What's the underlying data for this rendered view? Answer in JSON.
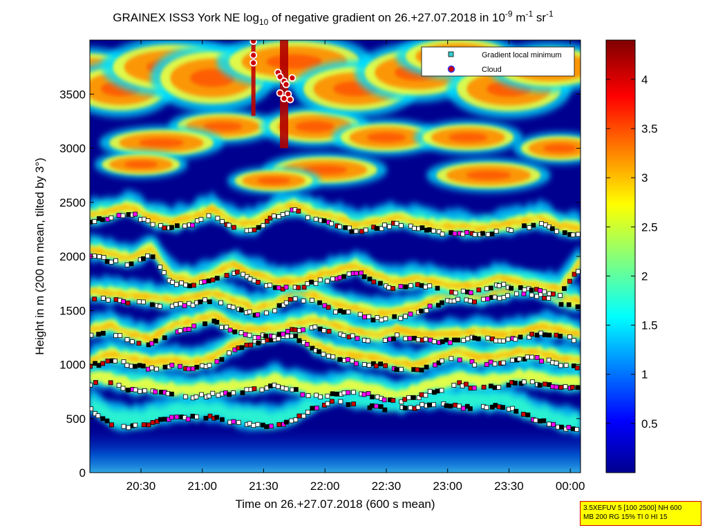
{
  "chart_data": {
    "type": "heatmap",
    "title": "GRAINEX ISS3 York NE log",
    "title_sub": "10",
    "title_mid": " of negative gradient on 26.+27.07.2018 in 10",
    "title_sup1": "-9",
    "title_mid2": " m",
    "title_sup2": "-1",
    "title_end": " sr",
    "title_sup3": "-1",
    "xlabel": "Time on 26.+27.07.2018 (600 s mean)",
    "ylabel": "Height in m (200 m mean, tilted by 3°)",
    "x_range": [
      "20:05",
      "00:05"
    ],
    "x_ticks": [
      "20:30",
      "21:00",
      "21:30",
      "22:00",
      "22:30",
      "23:00",
      "23:30",
      "00:00"
    ],
    "ylim": [
      0,
      4000
    ],
    "y_ticks": [
      0,
      500,
      1000,
      1500,
      2000,
      2500,
      3000,
      3500
    ],
    "colorbar": {
      "range": [
        0,
        4.4
      ],
      "ticks": [
        "0.5",
        "1",
        "1.5",
        "2",
        "2.5",
        "3",
        "3.5",
        "4"
      ],
      "colormap": "jet"
    },
    "legend": {
      "position": "top-right",
      "entries": [
        {
          "label": "Gradient local minimum",
          "marker": "square",
          "color": "#33cccc"
        },
        {
          "label": "Cloud",
          "marker": "circle",
          "color": "#cc0000"
        }
      ]
    },
    "layers": [
      {
        "name": "layer-1",
        "points": [
          [
            "20:05",
            590
          ],
          [
            "20:15",
            450
          ],
          [
            "20:25",
            420
          ],
          [
            "20:35",
            460
          ],
          [
            "20:45",
            500
          ],
          [
            "20:55",
            510
          ],
          [
            "21:05",
            520
          ],
          [
            "21:15",
            470
          ],
          [
            "21:25",
            440
          ],
          [
            "21:35",
            430
          ],
          [
            "21:45",
            480
          ],
          [
            "21:55",
            600
          ],
          [
            "22:05",
            660
          ],
          [
            "22:15",
            620
          ],
          [
            "22:25",
            600
          ],
          [
            "22:35",
            590
          ],
          [
            "22:45",
            610
          ],
          [
            "22:55",
            640
          ],
          [
            "23:05",
            610
          ],
          [
            "23:15",
            590
          ],
          [
            "23:25",
            620
          ],
          [
            "23:35",
            560
          ],
          [
            "23:45",
            480
          ],
          [
            "23:55",
            420
          ],
          [
            "00:05",
            390
          ]
        ]
      },
      {
        "name": "layer-2",
        "points": [
          [
            "20:05",
            820
          ],
          [
            "20:15",
            820
          ],
          [
            "20:25",
            760
          ],
          [
            "20:35",
            750
          ],
          [
            "20:45",
            720
          ],
          [
            "20:55",
            700
          ],
          [
            "21:05",
            720
          ],
          [
            "21:15",
            740
          ],
          [
            "21:25",
            760
          ],
          [
            "21:35",
            800
          ],
          [
            "21:45",
            760
          ],
          [
            "21:55",
            700
          ],
          [
            "22:05",
            720
          ],
          [
            "22:15",
            760
          ],
          [
            "22:25",
            700
          ],
          [
            "22:35",
            660
          ],
          [
            "22:45",
            700
          ],
          [
            "22:55",
            760
          ],
          [
            "23:05",
            820
          ],
          [
            "23:15",
            780
          ],
          [
            "23:25",
            800
          ],
          [
            "23:35",
            840
          ],
          [
            "23:45",
            820
          ],
          [
            "23:55",
            790
          ],
          [
            "00:05",
            780
          ]
        ]
      },
      {
        "name": "layer-3",
        "points": [
          [
            "20:05",
            980
          ],
          [
            "20:15",
            1040
          ],
          [
            "20:25",
            1000
          ],
          [
            "20:35",
            960
          ],
          [
            "20:45",
            980
          ],
          [
            "20:55",
            960
          ],
          [
            "21:05",
            1000
          ],
          [
            "21:15",
            1120
          ],
          [
            "21:25",
            1200
          ],
          [
            "21:35",
            1240
          ],
          [
            "21:45",
            1260
          ],
          [
            "21:55",
            1120
          ],
          [
            "22:05",
            1060
          ],
          [
            "22:15",
            1020
          ],
          [
            "22:25",
            1000
          ],
          [
            "22:35",
            960
          ],
          [
            "22:45",
            940
          ],
          [
            "22:55",
            1010
          ],
          [
            "23:05",
            1060
          ],
          [
            "23:15",
            1000
          ],
          [
            "23:25",
            1020
          ],
          [
            "23:35",
            1060
          ],
          [
            "23:45",
            1050
          ],
          [
            "23:55",
            1000
          ],
          [
            "00:05",
            980
          ]
        ]
      },
      {
        "name": "layer-4",
        "points": [
          [
            "20:05",
            1260
          ],
          [
            "20:15",
            1300
          ],
          [
            "20:25",
            1220
          ],
          [
            "20:35",
            1180
          ],
          [
            "20:45",
            1300
          ],
          [
            "20:55",
            1340
          ],
          [
            "21:05",
            1400
          ],
          [
            "21:15",
            1300
          ],
          [
            "21:25",
            1260
          ],
          [
            "21:35",
            1270
          ],
          [
            "21:45",
            1320
          ],
          [
            "21:55",
            1350
          ],
          [
            "22:05",
            1300
          ],
          [
            "22:15",
            1250
          ],
          [
            "22:25",
            1210
          ],
          [
            "22:35",
            1260
          ],
          [
            "22:45",
            1230
          ],
          [
            "22:55",
            1210
          ],
          [
            "23:05",
            1220
          ],
          [
            "23:15",
            1250
          ],
          [
            "23:25",
            1210
          ],
          [
            "23:35",
            1240
          ],
          [
            "23:45",
            1290
          ],
          [
            "23:55",
            1260
          ],
          [
            "00:05",
            1220
          ]
        ]
      },
      {
        "name": "layer-5",
        "points": [
          [
            "20:05",
            1620
          ],
          [
            "20:15",
            1600
          ],
          [
            "20:25",
            1580
          ],
          [
            "20:35",
            1560
          ],
          [
            "20:45",
            1540
          ],
          [
            "20:55",
            1560
          ],
          [
            "21:05",
            1600
          ],
          [
            "21:15",
            1540
          ],
          [
            "21:25",
            1460
          ],
          [
            "21:35",
            1500
          ],
          [
            "21:45",
            1620
          ],
          [
            "21:55",
            1580
          ],
          [
            "22:05",
            1500
          ],
          [
            "22:15",
            1460
          ],
          [
            "22:25",
            1420
          ],
          [
            "22:35",
            1430
          ],
          [
            "22:45",
            1470
          ],
          [
            "22:55",
            1560
          ],
          [
            "23:05",
            1610
          ],
          [
            "23:15",
            1580
          ],
          [
            "23:25",
            1620
          ],
          [
            "23:35",
            1660
          ],
          [
            "23:45",
            1640
          ],
          [
            "23:55",
            1560
          ],
          [
            "00:05",
            1520
          ]
        ]
      },
      {
        "name": "layer-6",
        "points": [
          [
            "20:05",
            2010
          ],
          [
            "20:15",
            1960
          ],
          [
            "20:25",
            1920
          ],
          [
            "20:35",
            2020
          ],
          [
            "20:45",
            1760
          ],
          [
            "20:55",
            1720
          ],
          [
            "21:05",
            1780
          ],
          [
            "21:15",
            1860
          ],
          [
            "21:25",
            1780
          ],
          [
            "21:35",
            1720
          ],
          [
            "21:45",
            1700
          ],
          [
            "21:55",
            1760
          ],
          [
            "22:05",
            1800
          ],
          [
            "22:15",
            1860
          ],
          [
            "22:25",
            1760
          ],
          [
            "22:35",
            1700
          ],
          [
            "22:45",
            1740
          ],
          [
            "22:55",
            1700
          ],
          [
            "23:05",
            1660
          ],
          [
            "23:15",
            1680
          ],
          [
            "23:25",
            1740
          ],
          [
            "23:35",
            1700
          ],
          [
            "23:45",
            1680
          ],
          [
            "23:55",
            1640
          ],
          [
            "00:05",
            1900
          ]
        ]
      },
      {
        "name": "layer-7",
        "points": [
          [
            "20:05",
            2320
          ],
          [
            "20:15",
            2360
          ],
          [
            "20:25",
            2400
          ],
          [
            "20:35",
            2300
          ],
          [
            "20:45",
            2260
          ],
          [
            "20:55",
            2300
          ],
          [
            "21:05",
            2380
          ],
          [
            "21:15",
            2260
          ],
          [
            "21:25",
            2240
          ],
          [
            "21:35",
            2360
          ],
          [
            "21:45",
            2420
          ],
          [
            "21:55",
            2340
          ],
          [
            "22:05",
            2300
          ],
          [
            "22:15",
            2230
          ],
          [
            "22:25",
            2260
          ],
          [
            "22:35",
            2300
          ],
          [
            "22:45",
            2260
          ],
          [
            "22:55",
            2220
          ],
          [
            "23:05",
            2220
          ],
          [
            "23:15",
            2200
          ],
          [
            "23:25",
            2220
          ],
          [
            "23:35",
            2260
          ],
          [
            "23:45",
            2300
          ],
          [
            "23:55",
            2220
          ],
          [
            "00:05",
            2200
          ]
        ]
      }
    ],
    "clouds": [
      [
        "21:25",
        3990
      ],
      [
        "21:25",
        3860
      ],
      [
        "21:25",
        3790
      ],
      [
        "21:37",
        3700
      ],
      [
        "21:38",
        3660
      ],
      [
        "21:40",
        3620
      ],
      [
        "21:41",
        3590
      ],
      [
        "21:42",
        3500
      ],
      [
        "21:38",
        3510
      ],
      [
        "21:40",
        3460
      ],
      [
        "21:43",
        3450
      ],
      [
        "21:44",
        3650
      ]
    ]
  },
  "info_box": {
    "line1": "3.5XEFUV 5 [100 2500] NH 600",
    "line2": "MB 200 RG 15% TI 0 HI 15"
  }
}
